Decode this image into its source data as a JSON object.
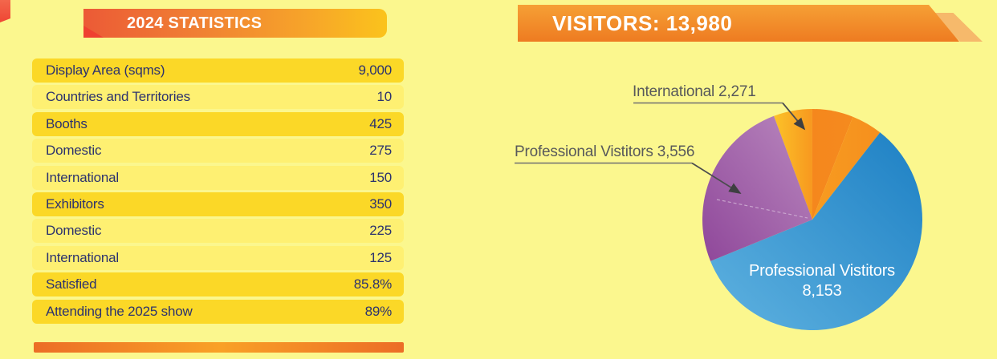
{
  "left_panel": {
    "ribbon_title": "2024 STATISTICS",
    "rows": [
      {
        "label": "Display Area (sqms)",
        "value": "9,000",
        "tone": "dark"
      },
      {
        "label": "Countries and Territories",
        "value": "10",
        "tone": "light"
      },
      {
        "label": "Booths",
        "value": "425",
        "tone": "dark"
      },
      {
        "label": "Domestic",
        "value": "275",
        "tone": "light"
      },
      {
        "label": "International",
        "value": "150",
        "tone": "light"
      },
      {
        "label": "Exhibitors",
        "value": "350",
        "tone": "dark"
      },
      {
        "label": "Domestic",
        "value": "225",
        "tone": "light"
      },
      {
        "label": "International",
        "value": "125",
        "tone": "light"
      },
      {
        "label": "Satisfied",
        "value": "85.8%",
        "tone": "dark"
      },
      {
        "label": "Attending the 2025 show",
        "value": "89%",
        "tone": "dark"
      }
    ]
  },
  "right_panel": {
    "banner_title": "VISITORS: 13,980"
  },
  "chart_data": {
    "type": "pie",
    "title": "VISITORS: 13,980",
    "total": 13980,
    "start_angle_deg": -20.5,
    "legend_position": "callouts",
    "slices": [
      {
        "name": "International",
        "value": 2271,
        "color_key": "orange",
        "color": "#F68C1E"
      },
      {
        "name": "Professional Vistitors",
        "value": 8153,
        "color_key": "blue",
        "color": "#2E8FCE"
      },
      {
        "name": "Professional Vistitors",
        "value": 3556,
        "color_key": "purple",
        "color": "#A262AA"
      }
    ],
    "callouts": {
      "international": "International 2,271",
      "professional_purple": "Professional Vistitors 3,556"
    },
    "inside_label": {
      "line1": "Professional Vistitors",
      "line2": "8,153"
    }
  },
  "palette": {
    "background": "#FBF78E",
    "row_dark": "#FBD827",
    "row_light": "#FEF072",
    "table_text": "#2C326E",
    "ribbon_red": "#EC5A36",
    "ribbon_gold": "#FBC31C",
    "banner_orange": "#EE7B21",
    "banner_accent": "#F6B96B",
    "callout_text": "#58595B"
  }
}
